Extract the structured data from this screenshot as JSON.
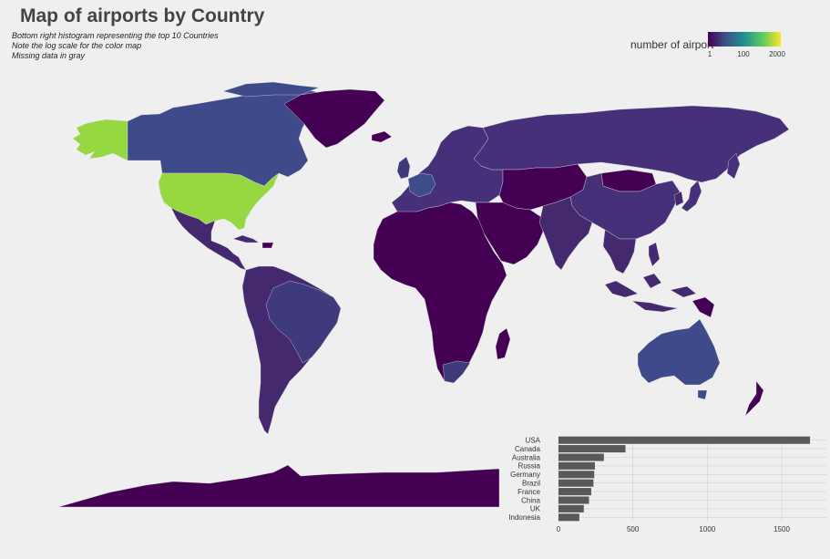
{
  "title": "Map of airports by Country",
  "subtitle_lines": [
    "Bottom right histogram representing the top 10 Countries",
    "Note the log scale for the color map",
    "Missing data in gray"
  ],
  "legend": {
    "title": "number of airport",
    "scale": "log",
    "ticks": [
      "1",
      "100",
      "2000"
    ],
    "colors": [
      "#440154",
      "#3b528b",
      "#21918c",
      "#5ec962",
      "#fde725"
    ]
  },
  "colors": {
    "background": "#f0efef",
    "low": "#440154",
    "mid_low": "#3f3a7c",
    "mid": "#3e4a89",
    "high": "#95d840",
    "bar": "#595959"
  },
  "chart_data": {
    "type": "bar",
    "orientation": "horizontal",
    "categories": [
      "USA",
      "Canada",
      "Australia",
      "Russia",
      "Germany",
      "Brazil",
      "France",
      "China",
      "UK",
      "Indonesia"
    ],
    "values": [
      1690,
      450,
      305,
      245,
      240,
      235,
      220,
      205,
      170,
      140
    ],
    "xlim": [
      0,
      1800
    ],
    "xticks": [
      "0",
      "500",
      "1000",
      "1500"
    ],
    "grid": true
  }
}
